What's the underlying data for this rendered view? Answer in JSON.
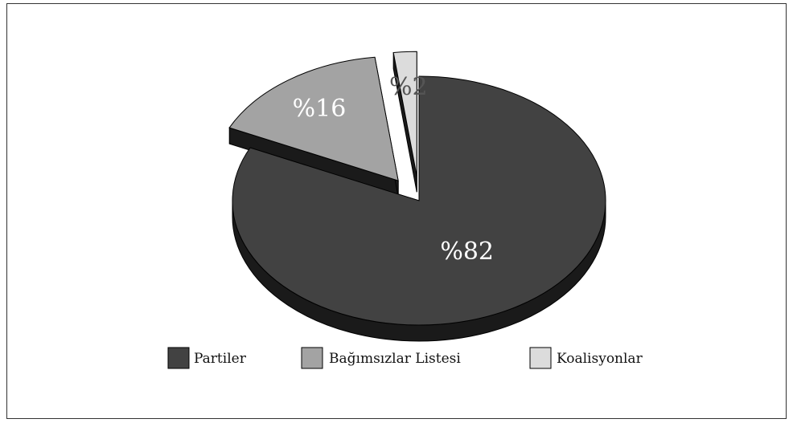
{
  "chart_data": {
    "type": "pie",
    "style": "3d-exploded",
    "slices": [
      {
        "name": "Partiler",
        "value": 82,
        "label": "%82",
        "color": "#424242",
        "side_color": "#1a1a1a",
        "label_color": "#ffffff"
      },
      {
        "name": "Bağımsızlar Listesi",
        "value": 16,
        "label": "%16",
        "color": "#a3a3a3",
        "side_color": "#1a1a1a",
        "label_color": "#ffffff"
      },
      {
        "name": "Koalisyonlar",
        "value": 2,
        "label": "%2",
        "color": "#dcdcdc",
        "side_color": "#1a1a1a",
        "label_color": "#555555"
      }
    ],
    "legend_placement": "bottom"
  }
}
